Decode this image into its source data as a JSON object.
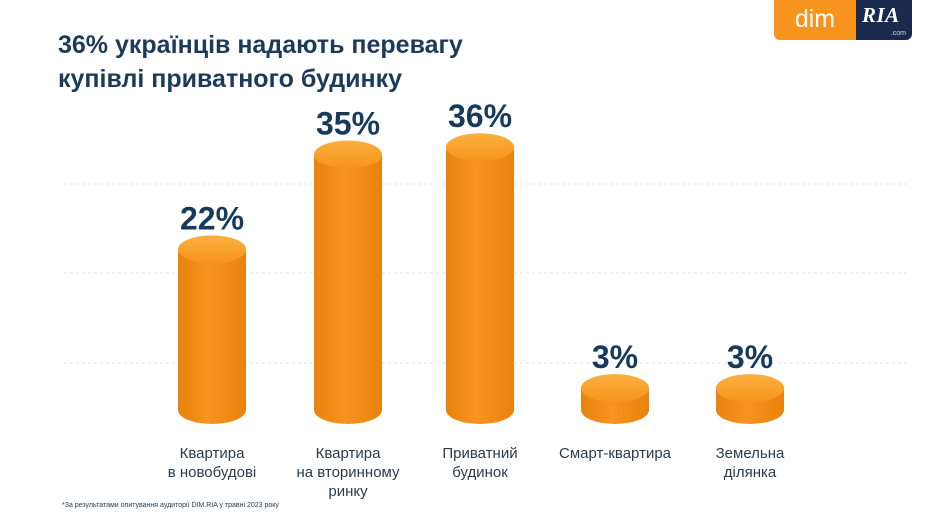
{
  "title": {
    "line1": "36% українців надають перевагу",
    "line2": "купівлі приватного будинку"
  },
  "logo": {
    "left": "dim",
    "right": "RIA",
    "right_sub": ".com"
  },
  "footnote": "*За результатами опитування аудиторії DIM.RIA у травні 2023 року",
  "colors": {
    "bar": "#f7941d",
    "bar_dark": "#e8830e",
    "bar_top": "#fbb040",
    "title": "#1e3a5a",
    "value": "#163a5c"
  },
  "chart_data": {
    "type": "bar",
    "categories": [
      [
        "Квартира",
        "в новобудові"
      ],
      [
        "Квартира",
        "на вторинному",
        "ринку"
      ],
      [
        "Приватний",
        "будинок"
      ],
      [
        "Смарт-квартира"
      ],
      [
        "Земельна",
        "ділянка"
      ]
    ],
    "values": [
      22,
      35,
      36,
      3,
      3
    ],
    "value_labels": [
      "22%",
      "35%",
      "36%",
      "3%",
      "3%"
    ],
    "unit": "%",
    "ylim": [
      0,
      40
    ],
    "grid": true
  }
}
